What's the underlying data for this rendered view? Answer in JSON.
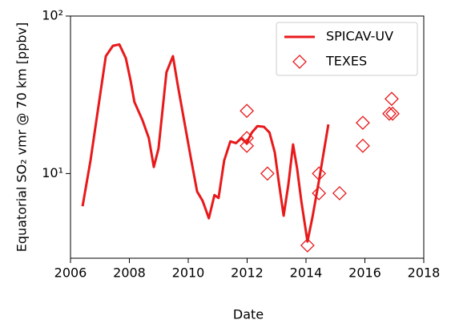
{
  "chart_data": {
    "type": "line",
    "xlabel": "Date",
    "ylabel": "Equatorial SO₂ vmr @ 70 km [ppbv]",
    "xlim": [
      2006,
      2018
    ],
    "xticks": [
      2006,
      2008,
      2010,
      2012,
      2014,
      2016,
      2018
    ],
    "ylim": [
      2.9,
      100
    ],
    "yscale": "log",
    "yticks": [
      {
        "value": 10,
        "label": "10¹"
      },
      {
        "value": 100,
        "label": "10²"
      }
    ],
    "legend": "upper right",
    "series": [
      {
        "name": "SPICAV-UV",
        "type": "line",
        "color": "#e8191b",
        "x": [
          2006.41,
          2006.68,
          2006.92,
          2007.2,
          2007.44,
          2007.66,
          2007.88,
          2008.04,
          2008.17,
          2008.45,
          2008.66,
          2008.83,
          2008.99,
          2009.26,
          2009.48,
          2009.64,
          2009.86,
          2010.08,
          2010.3,
          2010.49,
          2010.7,
          2010.89,
          2011.03,
          2011.22,
          2011.43,
          2011.62,
          2011.81,
          2011.98,
          2012.16,
          2012.35,
          2012.57,
          2012.76,
          2012.94,
          2013.07,
          2013.24,
          2013.4,
          2013.56,
          2013.7,
          2013.84,
          2014.05,
          2014.22,
          2014.44,
          2014.6,
          2014.76
        ],
        "values": [
          6.2,
          12.1,
          24.5,
          55.6,
          64.7,
          66,
          54,
          39,
          28.5,
          21.7,
          16.8,
          11,
          14.4,
          44,
          55.6,
          36.8,
          21.7,
          12.8,
          7.7,
          6.7,
          5.2,
          7.3,
          7.0,
          12.1,
          16,
          15.6,
          16.8,
          15.6,
          18.2,
          20,
          19.8,
          18.2,
          13.6,
          9,
          5.4,
          8.5,
          15.3,
          10.7,
          6.7,
          3.7,
          5.3,
          9,
          13.6,
          20.5
        ]
      },
      {
        "name": "TEXES",
        "type": "scatter",
        "color": "#e8191b",
        "x": [
          2011.99,
          2011.99,
          2011.99,
          2012.69,
          2014.05,
          2014.44,
          2014.44,
          2015.14,
          2015.93,
          2015.93,
          2016.83,
          2016.94,
          2016.91
        ],
        "values": [
          25,
          16.8,
          15,
          10,
          3.5,
          10,
          7.5,
          7.5,
          21,
          15,
          24,
          24,
          29.8
        ]
      }
    ]
  }
}
